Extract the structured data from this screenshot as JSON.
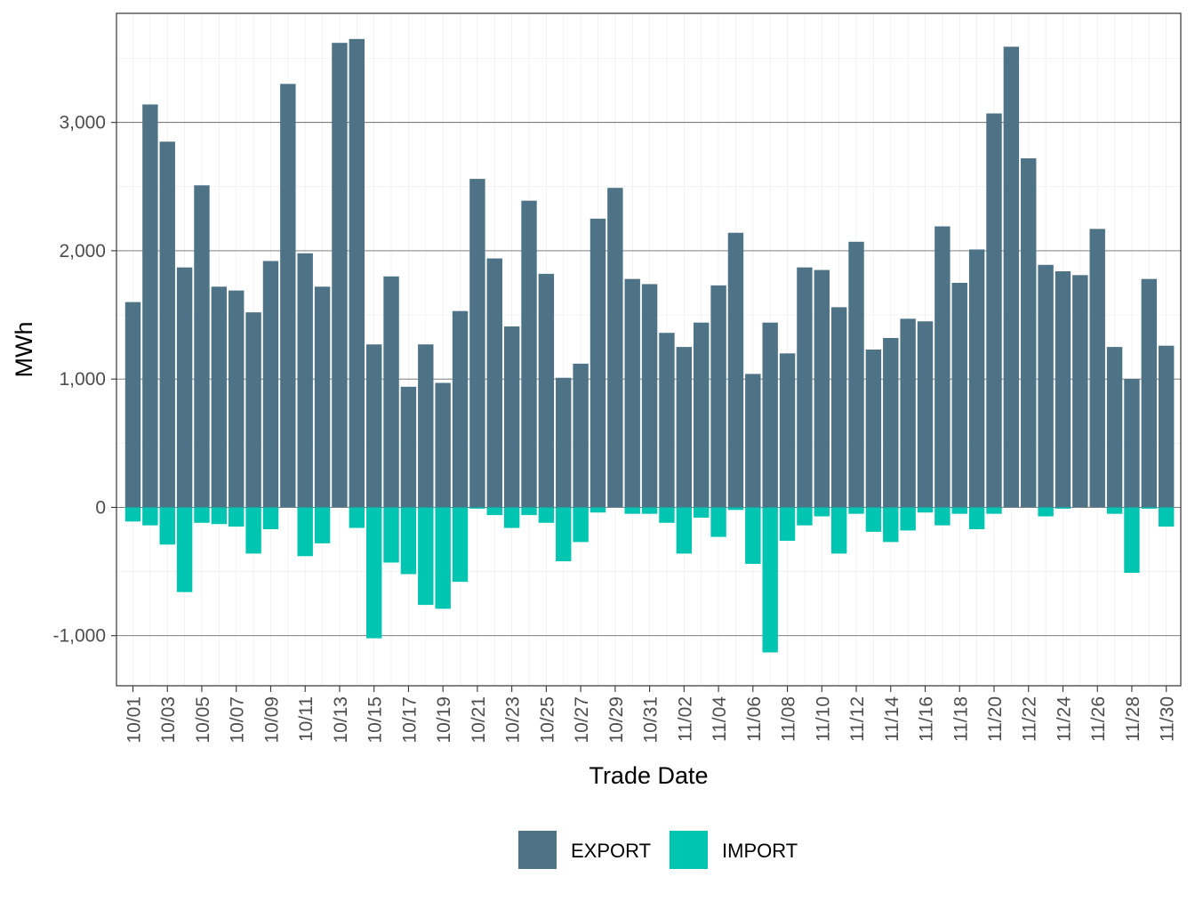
{
  "chart_data": {
    "type": "bar",
    "title": "",
    "xlabel": "Trade Date",
    "ylabel": "MWh",
    "ylim": [
      -1390,
      3850
    ],
    "y_ticks": [
      -1000,
      0,
      1000,
      2000,
      3000
    ],
    "y_tick_labels": [
      "-1,000",
      "0",
      "1,000",
      "2,000",
      "3,000"
    ],
    "x_tick_labels": [
      "10/01",
      "10/03",
      "10/05",
      "10/07",
      "10/09",
      "10/11",
      "10/13",
      "10/15",
      "10/17",
      "10/19",
      "10/21",
      "10/23",
      "10/25",
      "10/27",
      "10/29",
      "10/31",
      "11/02",
      "11/04",
      "11/06",
      "11/08",
      "11/10",
      "11/12",
      "11/14",
      "11/16",
      "11/18",
      "11/20",
      "11/22",
      "11/24",
      "11/26",
      "11/28",
      "11/30"
    ],
    "grid": true,
    "legend_position": "bottom",
    "categories": [
      "10/01",
      "10/02",
      "10/03",
      "10/04",
      "10/05",
      "10/06",
      "10/07",
      "10/08",
      "10/09",
      "10/10",
      "10/11",
      "10/12",
      "10/13",
      "10/14",
      "10/15",
      "10/16",
      "10/17",
      "10/18",
      "10/19",
      "10/20",
      "10/21",
      "10/22",
      "10/23",
      "10/24",
      "10/25",
      "10/26",
      "10/27",
      "10/28",
      "10/29",
      "10/30",
      "10/31",
      "11/01",
      "11/02",
      "11/03",
      "11/04",
      "11/05",
      "11/06",
      "11/07",
      "11/08",
      "11/09",
      "11/10",
      "11/11",
      "11/12",
      "11/13",
      "11/14",
      "11/15",
      "11/16",
      "11/17",
      "11/18",
      "11/19",
      "11/20",
      "11/21",
      "11/22",
      "11/23",
      "11/24",
      "11/25",
      "11/26",
      "11/27",
      "11/28",
      "11/29",
      "11/30"
    ],
    "series": [
      {
        "name": "EXPORT",
        "color": "#4e7387",
        "values": [
          1600,
          3140,
          2850,
          1870,
          2510,
          1720,
          1690,
          1520,
          1920,
          3300,
          1980,
          1720,
          3620,
          3650,
          1270,
          1800,
          940,
          1270,
          970,
          1530,
          2560,
          1940,
          1410,
          2390,
          1820,
          1010,
          1120,
          2250,
          2490,
          1780,
          1740,
          1360,
          1250,
          1440,
          1730,
          2140,
          1040,
          1440,
          1200,
          1870,
          1850,
          1560,
          2070,
          1230,
          1320,
          1470,
          1450,
          2190,
          1750,
          2010,
          3070,
          3590,
          2720,
          1890,
          1840,
          1810,
          2170,
          1250,
          1000,
          1780,
          1260
        ]
      },
      {
        "name": "IMPORT",
        "color": "#00c5b0",
        "values": [
          -110,
          -140,
          -290,
          -660,
          -120,
          -130,
          -150,
          -360,
          -170,
          0,
          -380,
          -280,
          0,
          -160,
          -1020,
          -430,
          -520,
          -760,
          -790,
          -580,
          -10,
          -60,
          -160,
          -60,
          -120,
          -420,
          -270,
          -40,
          0,
          -50,
          -50,
          -120,
          -360,
          -80,
          -230,
          -20,
          -440,
          -1130,
          -260,
          -140,
          -70,
          -360,
          -50,
          -190,
          -270,
          -180,
          -40,
          -140,
          -50,
          -170,
          -50,
          0,
          0,
          -70,
          -10,
          0,
          0,
          -50,
          -510,
          -10,
          -150
        ]
      }
    ]
  }
}
